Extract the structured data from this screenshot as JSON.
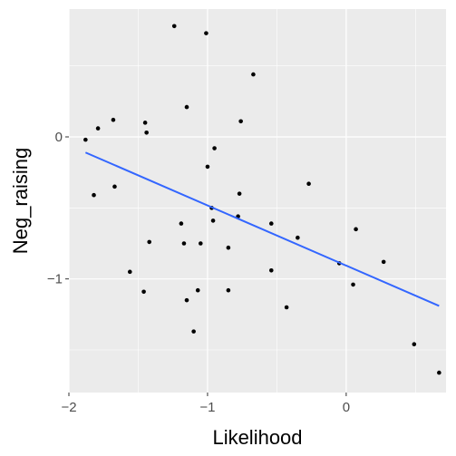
{
  "chart_data": {
    "type": "scatter",
    "title": "",
    "xlabel": "Likelihood",
    "ylabel": "Neg_raising",
    "xlim": [
      -2.0,
      0.72
    ],
    "ylim": [
      -1.8,
      0.9
    ],
    "x_ticks": [
      -2,
      -1,
      0
    ],
    "x_tick_labels": [
      "−2",
      "−1",
      "0"
    ],
    "y_ticks": [
      -1,
      0
    ],
    "y_tick_labels": [
      "−1",
      "0"
    ],
    "grid": true,
    "legend": "none",
    "points": [
      {
        "x": -1.88,
        "y": -0.02
      },
      {
        "x": -1.82,
        "y": -0.41
      },
      {
        "x": -1.79,
        "y": 0.06
      },
      {
        "x": -1.68,
        "y": 0.12
      },
      {
        "x": -1.67,
        "y": -0.35
      },
      {
        "x": -1.56,
        "y": -0.95
      },
      {
        "x": -1.46,
        "y": -1.09
      },
      {
        "x": -1.45,
        "y": 0.1
      },
      {
        "x": -1.44,
        "y": 0.03
      },
      {
        "x": -1.42,
        "y": -0.74
      },
      {
        "x": -1.24,
        "y": 0.78
      },
      {
        "x": -1.19,
        "y": -0.61
      },
      {
        "x": -1.17,
        "y": -0.75
      },
      {
        "x": -1.15,
        "y": 0.21
      },
      {
        "x": -1.15,
        "y": -1.15
      },
      {
        "x": -1.1,
        "y": -1.37
      },
      {
        "x": -1.07,
        "y": -1.08
      },
      {
        "x": -1.05,
        "y": -0.75
      },
      {
        "x": -1.01,
        "y": 0.73
      },
      {
        "x": -1.0,
        "y": -0.21
      },
      {
        "x": -0.97,
        "y": -0.5
      },
      {
        "x": -0.96,
        "y": -0.59
      },
      {
        "x": -0.95,
        "y": -0.08
      },
      {
        "x": -0.85,
        "y": -0.78
      },
      {
        "x": -0.85,
        "y": -1.08
      },
      {
        "x": -0.78,
        "y": -0.56
      },
      {
        "x": -0.77,
        "y": -0.4
      },
      {
        "x": -0.76,
        "y": 0.11
      },
      {
        "x": -0.67,
        "y": 0.44
      },
      {
        "x": -0.54,
        "y": -0.61
      },
      {
        "x": -0.54,
        "y": -0.94
      },
      {
        "x": -0.43,
        "y": -1.2
      },
      {
        "x": -0.35,
        "y": -0.71
      },
      {
        "x": -0.27,
        "y": -0.33
      },
      {
        "x": -0.05,
        "y": -0.89
      },
      {
        "x": 0.05,
        "y": -1.04
      },
      {
        "x": 0.07,
        "y": -0.65
      },
      {
        "x": 0.27,
        "y": -0.88
      },
      {
        "x": 0.49,
        "y": -1.46
      },
      {
        "x": 0.67,
        "y": -1.66
      }
    ],
    "point_color": "#000000",
    "trend_line": {
      "method": "linear",
      "color": "#3366ff",
      "x": [
        -1.88,
        0.67
      ],
      "y": [
        -0.11,
        -1.19
      ]
    },
    "colors": {
      "panel_background": "#ebebeb",
      "major_grid": "#ffffff"
    }
  }
}
